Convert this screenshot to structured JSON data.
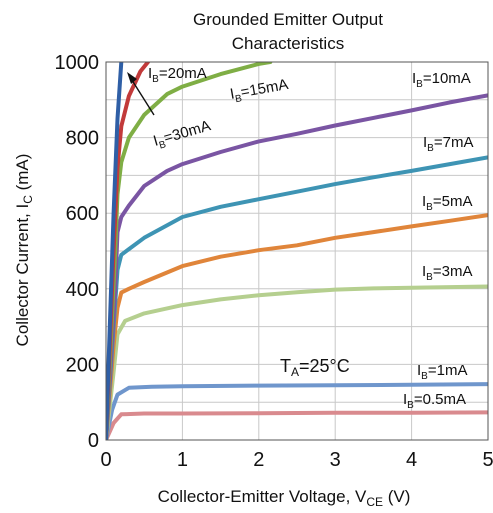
{
  "chart_data": {
    "type": "line",
    "title_lines": [
      "Grounded Emitter Output",
      "Characteristics"
    ],
    "xlabel": {
      "main": "Collector-Emitter Voltage, V",
      "sub": "CE",
      "end": " (V)"
    },
    "ylabel": {
      "main": "Collector Current, I",
      "sub": "C",
      "end": " (mA)"
    },
    "xlim": [
      0,
      5
    ],
    "ylim": [
      0,
      1000
    ],
    "x_ticks": [
      "0",
      "1",
      "2",
      "3",
      "4",
      "5"
    ],
    "y_ticks": [
      "0",
      "200",
      "400",
      "600",
      "800",
      "1000"
    ],
    "grid": true,
    "annotation": {
      "main": "T",
      "sub": "A",
      "end": "=25°C"
    },
    "series": [
      {
        "name": "IB=0.5mA",
        "label": {
          "main": "I",
          "sub": "B",
          "end": "=0.5mA"
        },
        "color": "#d98a8e",
        "points": [
          [
            0,
            0
          ],
          [
            0.1,
            45
          ],
          [
            0.2,
            68
          ],
          [
            0.5,
            70
          ],
          [
            1,
            70
          ],
          [
            2,
            71
          ],
          [
            3,
            72
          ],
          [
            4,
            72
          ],
          [
            5,
            73
          ]
        ]
      },
      {
        "name": "IB=1mA",
        "label": {
          "main": "I",
          "sub": "B",
          "end": "=1mA"
        },
        "color": "#6f96cc",
        "points": [
          [
            0,
            0
          ],
          [
            0.08,
            80
          ],
          [
            0.15,
            120
          ],
          [
            0.3,
            138
          ],
          [
            0.6,
            141
          ],
          [
            1,
            142
          ],
          [
            2,
            144
          ],
          [
            3,
            145
          ],
          [
            4,
            146
          ],
          [
            5,
            148
          ]
        ]
      },
      {
        "name": "IB=3mA",
        "label": {
          "main": "I",
          "sub": "B",
          "end": "=3mA"
        },
        "color": "#b5cf8f",
        "points": [
          [
            0,
            0
          ],
          [
            0.1,
            180
          ],
          [
            0.15,
            280
          ],
          [
            0.25,
            315
          ],
          [
            0.5,
            335
          ],
          [
            1,
            357
          ],
          [
            1.5,
            372
          ],
          [
            2,
            383
          ],
          [
            2.5,
            391
          ],
          [
            3,
            398
          ],
          [
            3.5,
            401
          ],
          [
            4,
            403
          ],
          [
            5,
            406
          ]
        ]
      },
      {
        "name": "IB=5mA",
        "label": {
          "main": "I",
          "sub": "B",
          "end": "=5mA"
        },
        "color": "#e0853a",
        "points": [
          [
            0,
            0
          ],
          [
            0.1,
            250
          ],
          [
            0.15,
            350
          ],
          [
            0.2,
            390
          ],
          [
            0.3,
            400
          ],
          [
            0.5,
            418
          ],
          [
            1,
            460
          ],
          [
            1.5,
            485
          ],
          [
            2,
            502
          ],
          [
            2.5,
            515
          ],
          [
            3,
            535
          ],
          [
            3.5,
            550
          ],
          [
            4,
            565
          ],
          [
            4.5,
            580
          ],
          [
            5,
            595
          ]
        ]
      },
      {
        "name": "IB=7mA",
        "label": {
          "main": "I",
          "sub": "B",
          "end": "=7mA"
        },
        "color": "#3e94b4",
        "points": [
          [
            0,
            0
          ],
          [
            0.1,
            300
          ],
          [
            0.15,
            450
          ],
          [
            0.2,
            490
          ],
          [
            0.3,
            505
          ],
          [
            0.5,
            535
          ],
          [
            1,
            590
          ],
          [
            1.5,
            617
          ],
          [
            2,
            637
          ],
          [
            2.5,
            657
          ],
          [
            3,
            677
          ],
          [
            3.5,
            695
          ],
          [
            4,
            712
          ],
          [
            4.5,
            730
          ],
          [
            5,
            748
          ]
        ]
      },
      {
        "name": "IB=10mA",
        "label": {
          "main": "I",
          "sub": "B",
          "end": "=10mA"
        },
        "color": "#7a55a3",
        "points": [
          [
            0,
            0
          ],
          [
            0.12,
            400
          ],
          [
            0.15,
            550
          ],
          [
            0.2,
            590
          ],
          [
            0.3,
            620
          ],
          [
            0.5,
            672
          ],
          [
            0.8,
            712
          ],
          [
            1,
            730
          ],
          [
            1.5,
            762
          ],
          [
            2,
            790
          ],
          [
            2.5,
            810
          ],
          [
            3,
            832
          ],
          [
            3.5,
            852
          ],
          [
            4,
            872
          ],
          [
            4.5,
            893
          ],
          [
            5,
            912
          ]
        ]
      },
      {
        "name": "IB=15mA",
        "label": {
          "main": "I",
          "sub": "B",
          "end": "=15mA"
        },
        "color": "#7fae45",
        "points": [
          [
            0,
            0
          ],
          [
            0.12,
            500
          ],
          [
            0.15,
            650
          ],
          [
            0.2,
            735
          ],
          [
            0.3,
            800
          ],
          [
            0.5,
            860
          ],
          [
            0.8,
            915
          ],
          [
            1,
            935
          ],
          [
            1.5,
            968
          ],
          [
            2,
            995
          ],
          [
            2.15,
            1000
          ]
        ]
      },
      {
        "name": "IB=20mA",
        "label": {
          "main": "I",
          "sub": "B",
          "end": "=20mA"
        },
        "color": "#c23a3a",
        "points": [
          [
            0,
            0
          ],
          [
            0.1,
            500
          ],
          [
            0.15,
            720
          ],
          [
            0.2,
            830
          ],
          [
            0.3,
            910
          ],
          [
            0.45,
            975
          ],
          [
            0.55,
            1000
          ]
        ]
      },
      {
        "name": "IB=30mA",
        "label": {
          "main": "I",
          "sub": "B",
          "end": "=30mA"
        },
        "color": "#2f5fa6",
        "points": [
          [
            0,
            0
          ],
          [
            0.05,
            300
          ],
          [
            0.1,
            600
          ],
          [
            0.15,
            850
          ],
          [
            0.2,
            1000
          ]
        ]
      }
    ]
  }
}
